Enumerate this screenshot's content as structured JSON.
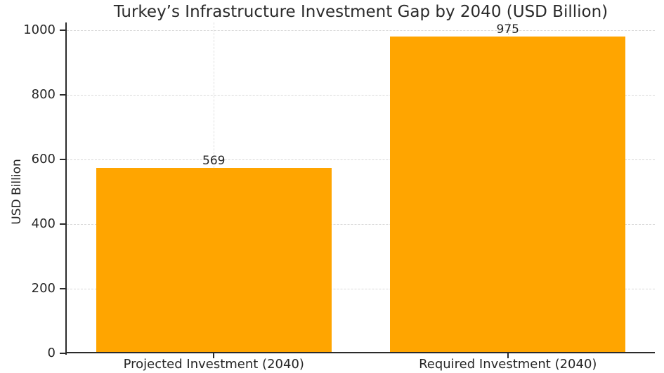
{
  "chart_data": {
    "type": "bar",
    "title": "Turkey’s Infrastructure Investment Gap by 2040 (USD Billion)",
    "xlabel": "",
    "ylabel": "USD Billion",
    "categories": [
      "Projected Investment (2040)",
      "Required Investment (2040)"
    ],
    "values": [
      569,
      975
    ],
    "value_labels": [
      "569",
      "975"
    ],
    "yticks": [
      0,
      200,
      400,
      600,
      800,
      1000
    ],
    "ylim": [
      0,
      1023
    ],
    "bar_width_fraction": 0.8,
    "grid": true,
    "legend": "none",
    "bar_color": "#FFA500",
    "grid_color_h": "#d8d8d8",
    "grid_color_v": "#e0e0e0",
    "axis_color": "#2b2b2b",
    "text_color": "#262626",
    "background_color": "#ffffff"
  }
}
